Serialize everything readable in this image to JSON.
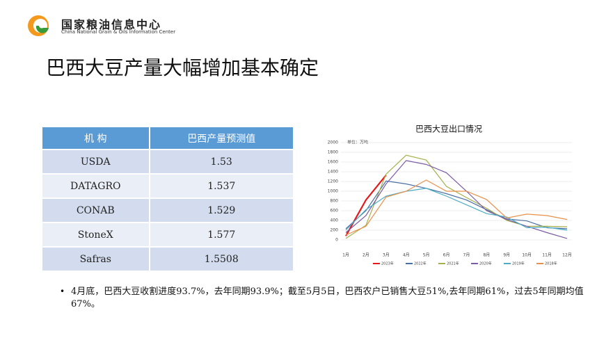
{
  "header": {
    "org_name": "国家粮油信息中心",
    "org_name_en": "China National Grain & Oils Information Center"
  },
  "title": "巴西大豆产量大幅增加基本确定",
  "table": {
    "columns": [
      "机  构",
      "巴西产量预测值"
    ],
    "rows": [
      [
        "USDA",
        "1.53"
      ],
      [
        "DATAGRO",
        "1.537"
      ],
      [
        "CONAB",
        "1.529"
      ],
      [
        "StoneX",
        "1.577"
      ],
      [
        "Safras",
        "1.5508"
      ]
    ]
  },
  "chart": {
    "type": "line",
    "title": "巴西大豆出口情况",
    "unit_label": "单位：万吨",
    "categories": [
      "1月",
      "2月",
      "3月",
      "4月",
      "5月",
      "6月",
      "7月",
      "8月",
      "9月",
      "10月",
      "11月",
      "12月"
    ],
    "ylim": [
      0,
      2000
    ],
    "yticks": [
      0,
      200,
      400,
      600,
      800,
      1000,
      1200,
      1400,
      1600,
      1800,
      2000
    ],
    "series": [
      {
        "name": "2023年",
        "color": "#e31a1c",
        "values": [
          80,
          820,
          1330,
          null,
          null,
          null,
          null,
          null,
          null,
          null,
          null,
          null
        ]
      },
      {
        "name": "2022年",
        "color": "#4a6fa5",
        "values": [
          230,
          600,
          1210,
          1150,
          1060,
          950,
          820,
          620,
          430,
          390,
          250,
          230
        ]
      },
      {
        "name": "2021年",
        "color": "#a5b04a",
        "values": [
          30,
          300,
          1350,
          1740,
          1640,
          1100,
          870,
          650,
          400,
          280,
          280,
          270
        ]
      },
      {
        "name": "2020年",
        "color": "#7a5ba5",
        "values": [
          150,
          500,
          1150,
          1630,
          1550,
          1380,
          1000,
          600,
          420,
          280,
          150,
          30
        ]
      },
      {
        "name": "2019年",
        "color": "#4bacc6",
        "values": [
          200,
          620,
          900,
          1000,
          1060,
          900,
          720,
          540,
          470,
          250,
          260,
          200
        ]
      },
      {
        "name": "2018年",
        "color": "#e8904a",
        "values": [
          100,
          280,
          880,
          1000,
          1230,
          1000,
          1000,
          830,
          450,
          530,
          500,
          420
        ]
      }
    ]
  },
  "bullet": "4月底，巴西大豆收割进度93.7%，去年同期93.9%；截至5月5日，巴西农户已销售大豆51%,去年同期61%，过去5年同期均值67%。"
}
